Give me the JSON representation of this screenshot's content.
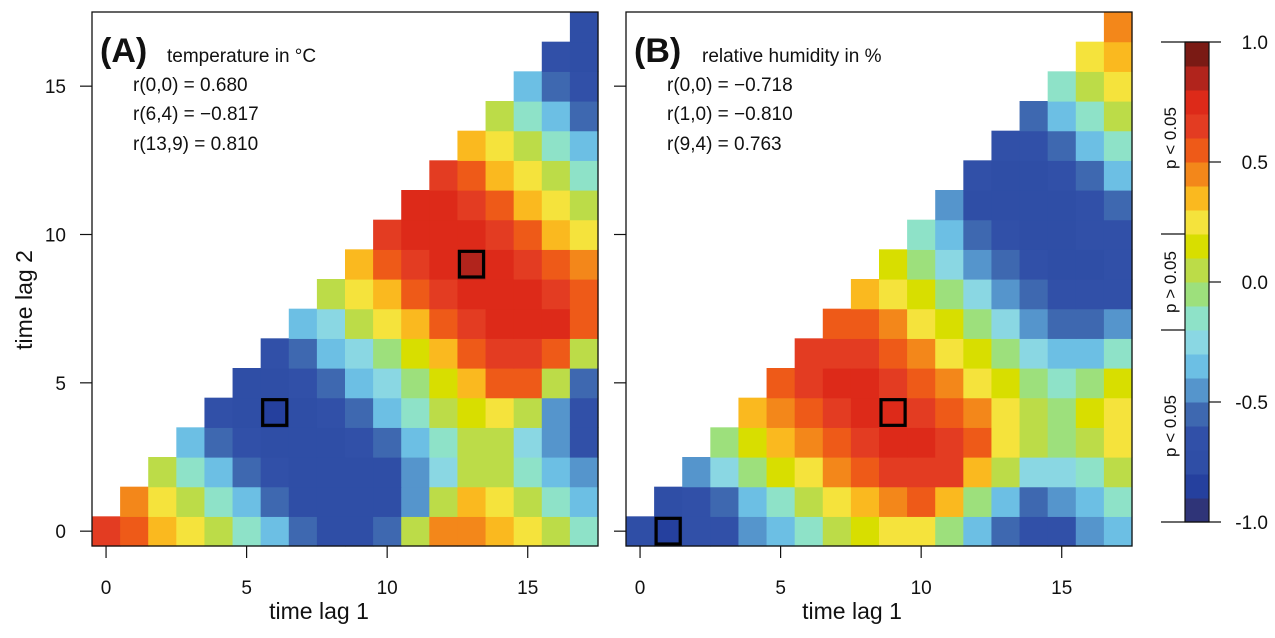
{
  "chart_data": [
    {
      "type": "heatmap",
      "panel_letter": "(A)",
      "title": "temperature in °C",
      "xlabel": "time lag 1",
      "ylabel": "time lag 2",
      "xlim": [
        0,
        17
      ],
      "ylim": [
        0,
        17
      ],
      "xticks": [
        "0",
        "5",
        "10",
        "15"
      ],
      "yticks": [
        "0",
        "5",
        "10",
        "15"
      ],
      "show_ytick_labels": true,
      "annotations": [
        "r(0,0) = 0.680",
        "r(6,4) = −0.817",
        "r(13,9) = 0.810"
      ],
      "highlighted_cells": [
        {
          "x": 6,
          "y": 4,
          "r": -0.817
        },
        {
          "x": 13,
          "y": 9,
          "r": 0.81
        }
      ],
      "rows_note": "rows[y] lists r values for x = y..17 (lower-left triangle empty)",
      "rows": [
        [
          0.68,
          0.55,
          0.35,
          0.25,
          0.05,
          -0.15,
          -0.35,
          -0.55,
          -0.75,
          -0.75,
          -0.55,
          0.05,
          0.45,
          0.45,
          0.35,
          0.25,
          0.05,
          -0.15
        ],
        [
          0.45,
          0.25,
          0.05,
          -0.15,
          -0.35,
          -0.55,
          -0.75,
          -0.75,
          -0.75,
          -0.75,
          -0.45,
          0.05,
          0.35,
          0.25,
          0.05,
          -0.15,
          -0.35
        ],
        [
          0.05,
          -0.15,
          -0.35,
          -0.55,
          -0.65,
          -0.75,
          -0.75,
          -0.75,
          -0.75,
          -0.45,
          -0.25,
          0.05,
          0.05,
          -0.15,
          -0.35,
          -0.45
        ],
        [
          -0.35,
          -0.55,
          -0.65,
          -0.75,
          -0.75,
          -0.75,
          -0.65,
          -0.55,
          -0.35,
          -0.15,
          0.05,
          0.05,
          -0.25,
          -0.45,
          -0.65
        ],
        [
          -0.65,
          -0.75,
          -0.817,
          -0.75,
          -0.65,
          -0.55,
          -0.35,
          -0.15,
          0.05,
          0.15,
          0.25,
          0.05,
          -0.45,
          -0.65
        ],
        [
          -0.75,
          -0.75,
          -0.65,
          -0.55,
          -0.35,
          -0.25,
          -0.05,
          0.15,
          0.35,
          0.55,
          0.55,
          0.05,
          -0.55
        ],
        [
          -0.65,
          -0.55,
          -0.35,
          -0.25,
          -0.05,
          0.15,
          0.35,
          0.55,
          0.65,
          0.65,
          0.55,
          0.05
        ],
        [
          -0.35,
          -0.25,
          0.05,
          0.25,
          0.35,
          0.55,
          0.65,
          0.75,
          0.75,
          0.75,
          0.55
        ],
        [
          0.05,
          0.25,
          0.35,
          0.55,
          0.65,
          0.75,
          0.75,
          0.75,
          0.65,
          0.55
        ],
        [
          0.35,
          0.55,
          0.65,
          0.75,
          0.81,
          0.75,
          0.65,
          0.55,
          0.45
        ],
        [
          0.65,
          0.75,
          0.75,
          0.75,
          0.65,
          0.55,
          0.35,
          0.25
        ],
        [
          0.75,
          0.75,
          0.65,
          0.55,
          0.35,
          0.25,
          0.05
        ],
        [
          0.65,
          0.55,
          0.35,
          0.25,
          0.05,
          -0.15
        ],
        [
          0.35,
          0.25,
          0.05,
          -0.15,
          -0.35
        ],
        [
          0.05,
          -0.15,
          -0.35,
          -0.55
        ],
        [
          -0.35,
          -0.55,
          -0.65
        ],
        [
          -0.65,
          -0.75
        ],
        [
          -0.75
        ]
      ]
    },
    {
      "type": "heatmap",
      "panel_letter": "(B)",
      "title": "relative humidity in %",
      "xlabel": "time lag 1",
      "ylabel": "",
      "xlim": [
        0,
        17
      ],
      "ylim": [
        0,
        17
      ],
      "xticks": [
        "0",
        "5",
        "10",
        "15"
      ],
      "yticks": [
        "0",
        "5",
        "10",
        "15"
      ],
      "show_ytick_labels": false,
      "annotations": [
        "r(0,0) = −0.718",
        "r(1,0) = −0.810",
        "r(9,4) = 0.763"
      ],
      "highlighted_cells": [
        {
          "x": 1,
          "y": 0,
          "r": -0.81
        },
        {
          "x": 9,
          "y": 4,
          "r": 0.763
        }
      ],
      "rows_note": "rows[y] lists r values for x = y..17 (lower-left triangle empty)",
      "rows": [
        [
          -0.718,
          -0.81,
          -0.65,
          -0.65,
          -0.45,
          -0.35,
          -0.15,
          0.05,
          0.15,
          0.25,
          0.25,
          -0.05,
          -0.35,
          -0.55,
          -0.65,
          -0.65,
          -0.45,
          -0.35
        ],
        [
          -0.75,
          -0.65,
          -0.55,
          -0.35,
          -0.15,
          0.05,
          0.25,
          0.35,
          0.45,
          0.55,
          0.35,
          -0.05,
          -0.35,
          -0.55,
          -0.45,
          -0.35,
          -0.15
        ],
        [
          -0.45,
          -0.25,
          -0.05,
          0.15,
          0.25,
          0.45,
          0.55,
          0.65,
          0.65,
          0.65,
          0.35,
          0.05,
          -0.25,
          -0.25,
          -0.15,
          0.05
        ],
        [
          -0.05,
          0.15,
          0.35,
          0.45,
          0.55,
          0.65,
          0.75,
          0.75,
          0.65,
          0.55,
          0.25,
          0.05,
          -0.05,
          0.05,
          0.25
        ],
        [
          0.35,
          0.45,
          0.55,
          0.65,
          0.75,
          0.763,
          0.65,
          0.55,
          0.45,
          0.25,
          0.05,
          -0.05,
          0.15,
          0.25
        ],
        [
          0.55,
          0.65,
          0.75,
          0.75,
          0.65,
          0.55,
          0.45,
          0.25,
          0.15,
          -0.05,
          -0.15,
          -0.05,
          0.15
        ],
        [
          0.65,
          0.65,
          0.65,
          0.55,
          0.45,
          0.25,
          0.15,
          -0.05,
          -0.25,
          -0.35,
          -0.35,
          -0.15
        ],
        [
          0.55,
          0.55,
          0.45,
          0.25,
          0.15,
          -0.05,
          -0.25,
          -0.45,
          -0.55,
          -0.55,
          -0.45
        ],
        [
          0.35,
          0.25,
          0.15,
          -0.05,
          -0.25,
          -0.45,
          -0.55,
          -0.65,
          -0.65,
          -0.65
        ],
        [
          0.15,
          -0.05,
          -0.25,
          -0.45,
          -0.55,
          -0.65,
          -0.75,
          -0.75,
          -0.65
        ],
        [
          -0.15,
          -0.35,
          -0.55,
          -0.65,
          -0.75,
          -0.75,
          -0.65,
          -0.65
        ],
        [
          -0.45,
          -0.75,
          -0.75,
          -0.75,
          -0.75,
          -0.65,
          -0.55
        ],
        [
          -0.65,
          -0.75,
          -0.75,
          -0.65,
          -0.55,
          -0.35
        ],
        [
          -0.65,
          -0.65,
          -0.55,
          -0.35,
          -0.15
        ],
        [
          -0.55,
          -0.35,
          -0.15,
          0.05
        ],
        [
          -0.15,
          0.05,
          0.25
        ],
        [
          0.25,
          0.35
        ],
        [
          0.45
        ]
      ]
    }
  ],
  "colorbar": {
    "range": [
      -1.0,
      1.0
    ],
    "bins": 20,
    "tick_labels": [
      "1.0",
      "0.5",
      "0.0",
      "-0.5",
      "-1.0"
    ],
    "tick_values": [
      1.0,
      0.5,
      0.0,
      -0.5,
      -1.0
    ],
    "colors_low_to_high": [
      "#2F3478",
      "#25409E",
      "#2F4EA6",
      "#3150A8",
      "#3E68B0",
      "#5595CC",
      "#6CBFE4",
      "#8AD7E3",
      "#8EE2C8",
      "#9DE07C",
      "#BCDC48",
      "#D8DE00",
      "#F5E33C",
      "#FAB91F",
      "#F3871A",
      "#EE5A18",
      "#E33C22",
      "#DD2A19",
      "#B1241C",
      "#7A1A14"
    ],
    "significance_labels": [
      {
        "label": "p < 0.05",
        "from": 0.2,
        "to": 1.0
      },
      {
        "label": "p > 0.05",
        "from": -0.2,
        "to": 0.2
      },
      {
        "label": "p < 0.05",
        "from": -1.0,
        "to": -0.2
      }
    ]
  }
}
